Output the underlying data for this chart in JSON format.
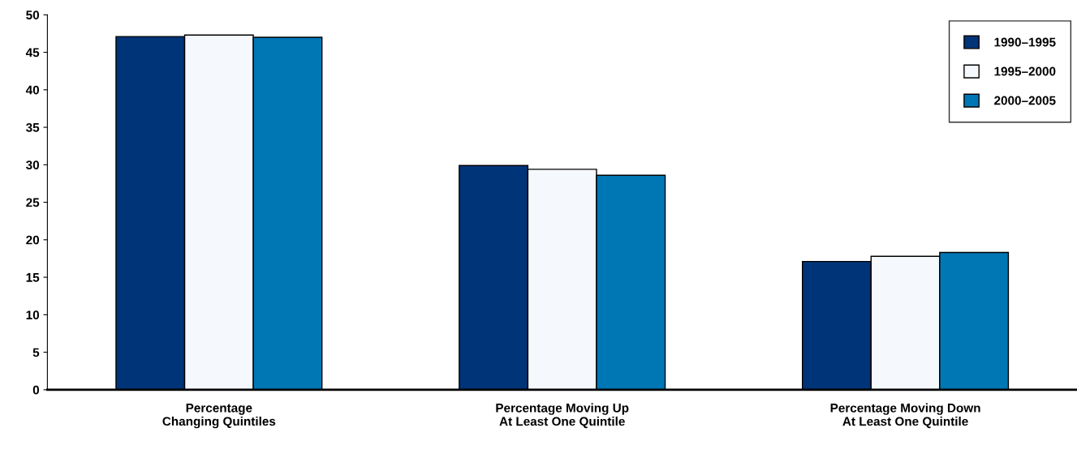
{
  "chart_data": {
    "type": "bar",
    "categories": [
      "Percentage\nChanging Quintiles",
      "Percentage Moving Up\nAt Least One Quintile",
      "Percentage Moving Down\nAt Least One Quintile"
    ],
    "series": [
      {
        "name": "1990–1995",
        "color": "#003478",
        "values": [
          47.1,
          29.9,
          17.1
        ]
      },
      {
        "name": "1995–2000",
        "color": "#f5f8fc",
        "values": [
          47.3,
          29.4,
          17.8
        ]
      },
      {
        "name": "2000–2005",
        "color": "#0077b5",
        "values": [
          47.0,
          28.6,
          18.3
        ]
      }
    ],
    "ylim": [
      0,
      50
    ],
    "yticks": [
      0,
      5,
      10,
      15,
      20,
      25,
      30,
      35,
      40,
      45,
      50
    ],
    "grid": false,
    "legend": "top right"
  }
}
